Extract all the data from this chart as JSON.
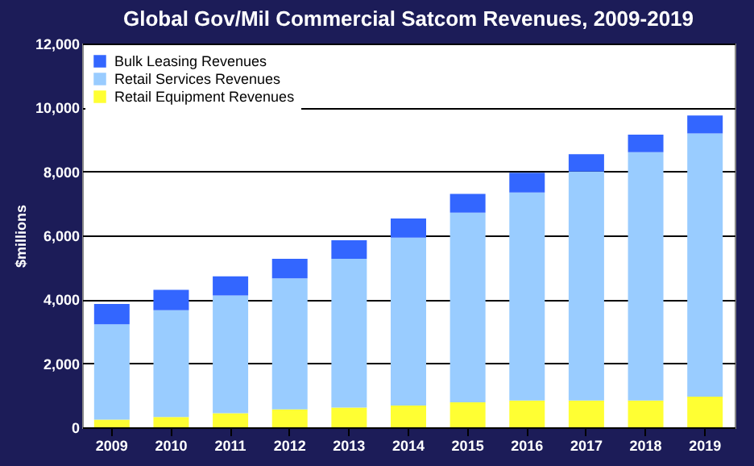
{
  "chart_data": {
    "type": "bar",
    "title": "Global Gov/Mil Commercial Satcom Revenues, 2009-2019",
    "ylabel": "$millions",
    "categories": [
      "2009",
      "2010",
      "2011",
      "2012",
      "2013",
      "2014",
      "2015",
      "2016",
      "2017",
      "2018",
      "2019"
    ],
    "stacked": true,
    "series": [
      {
        "name": "Retail Equipment Revenues",
        "color": "#ffff33",
        "values": [
          240,
          320,
          440,
          560,
          620,
          680,
          780,
          840,
          840,
          840,
          960
        ]
      },
      {
        "name": "Retail Services Revenues",
        "color": "#99ccff",
        "values": [
          2980,
          3340,
          3680,
          4100,
          4650,
          5250,
          5930,
          6500,
          7160,
          7760,
          8230
        ]
      },
      {
        "name": "Bulk Leasing Revenues",
        "color": "#3366ff",
        "values": [
          640,
          640,
          600,
          610,
          580,
          600,
          590,
          620,
          540,
          550,
          560
        ]
      }
    ],
    "ylim": [
      0,
      12000
    ],
    "yticks": [
      0,
      {
        "value": 2000,
        "label": "2,000"
      },
      {
        "value": 4000,
        "label": "4,000"
      },
      {
        "value": 6000,
        "label": "6,000"
      },
      {
        "value": 8000,
        "label": "8,000"
      },
      {
        "value": 10000,
        "label": "10,000"
      },
      {
        "value": 12000,
        "label": "12,000"
      }
    ],
    "grid": "y",
    "legend": "top left"
  }
}
